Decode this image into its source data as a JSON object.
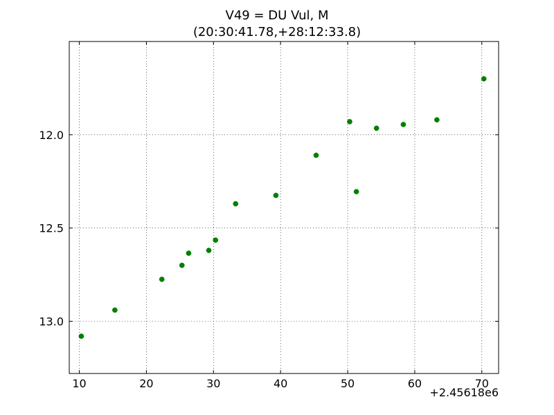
{
  "chart_data": {
    "type": "scatter",
    "title": "V49 = DU Vul, M",
    "subtitle": "(20:30:41.78,+28:12:33.8)",
    "xlabel": "",
    "ylabel": "",
    "x_offset_label": "+2.45618e6",
    "xlim": [
      8.5,
      72.5
    ],
    "ylim": [
      13.28,
      11.5
    ],
    "y_inverted": true,
    "grid": true,
    "x_ticks": [
      10,
      20,
      30,
      40,
      50,
      60,
      70
    ],
    "x_tick_labels": [
      "10",
      "20",
      "30",
      "40",
      "50",
      "60",
      "70"
    ],
    "y_ticks": [
      12.0,
      12.5,
      13.0
    ],
    "y_tick_labels": [
      "12.0",
      "12.5",
      "13.0"
    ],
    "series": [
      {
        "color": "#008000",
        "points": [
          {
            "x": 10.3,
            "y": 13.08
          },
          {
            "x": 15.3,
            "y": 12.94
          },
          {
            "x": 22.3,
            "y": 12.775
          },
          {
            "x": 25.3,
            "y": 12.7
          },
          {
            "x": 26.3,
            "y": 12.635
          },
          {
            "x": 29.3,
            "y": 12.62
          },
          {
            "x": 30.3,
            "y": 12.565
          },
          {
            "x": 33.3,
            "y": 12.37
          },
          {
            "x": 39.3,
            "y": 12.325
          },
          {
            "x": 45.3,
            "y": 12.11
          },
          {
            "x": 50.3,
            "y": 11.93
          },
          {
            "x": 51.3,
            "y": 12.305
          },
          {
            "x": 54.3,
            "y": 11.965
          },
          {
            "x": 58.3,
            "y": 11.945
          },
          {
            "x": 63.3,
            "y": 11.92
          },
          {
            "x": 70.3,
            "y": 11.7
          }
        ]
      }
    ]
  }
}
